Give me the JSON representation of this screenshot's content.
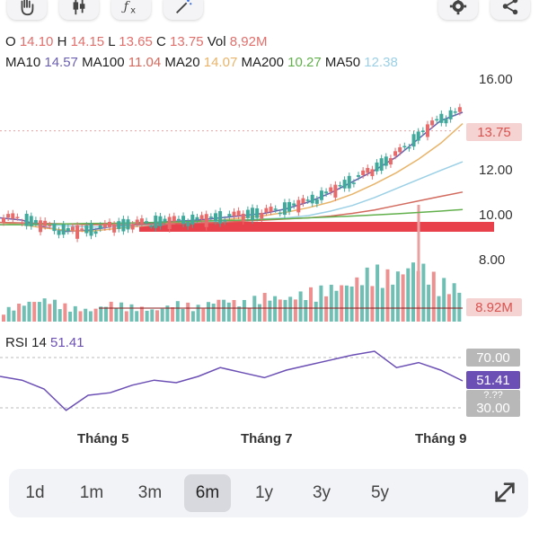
{
  "toolbar": {
    "left_icons": [
      "hand-draw-icon",
      "candle-icon",
      "function-icon",
      "magic-wand-icon"
    ],
    "right_icons": [
      "settings-icon",
      "share-icon"
    ]
  },
  "ohlc": {
    "o_label": "O",
    "o_value": "14.10",
    "h_label": "H",
    "h_value": "14.15",
    "l_label": "L",
    "l_value": "13.65",
    "c_label": "C",
    "c_value": "13.75",
    "vol_label": "Vol",
    "vol_value": "8,92M"
  },
  "ma": {
    "ma10_label": "MA10",
    "ma10_value": "14.57",
    "ma10_color": "#6b5fb0",
    "ma100_label": "MA100",
    "ma100_value": "11.04",
    "ma100_color": "#d36a5e",
    "ma20_label": "MA20",
    "ma20_value": "14.07",
    "ma20_color": "#e8b46a",
    "ma200_label": "MA200",
    "ma200_value": "10.27",
    "ma200_color": "#62b04c",
    "ma50_label": "MA50",
    "ma50_value": "12.38",
    "ma50_color": "#9bd0e6"
  },
  "price_axis": {
    "ticks": [
      "16.00",
      "12.00",
      "10.00",
      "8.00"
    ],
    "last_price_tag": "13.75"
  },
  "volume": {
    "last_volume_tag": "8.92M"
  },
  "rsi": {
    "label": "RSI 14",
    "value": "51.41",
    "levels": [
      "70.00",
      "30.00"
    ],
    "hidden_tick": "?.??",
    "value_color": "#6b4fb5"
  },
  "x_axis": {
    "labels": [
      "Tháng 5",
      "Tháng 7",
      "Tháng 9"
    ]
  },
  "ranges": {
    "items": [
      "1d",
      "1m",
      "3m",
      "6m",
      "1y",
      "3y",
      "5y"
    ],
    "active": "6m"
  },
  "colors": {
    "up": "#3fa99b",
    "down": "#e86b6b",
    "support_band": "#e8414b"
  },
  "chart_data": {
    "type": "line",
    "title": "",
    "xlabel": "",
    "ylabel": "",
    "ylim": [
      7.0,
      16.5
    ],
    "x_tick_labels": [
      "Tháng 5",
      "Tháng 7",
      "Tháng 9"
    ],
    "y_tick_labels": [
      "16.00",
      "12.00",
      "10.00",
      "8.00"
    ],
    "series": [
      {
        "name": "MA10",
        "values": [
          9.9,
          9.8,
          9.5,
          9.3,
          9.35,
          9.5,
          9.6,
          9.7,
          9.75,
          9.8,
          9.9,
          10.0,
          10.1,
          10.3,
          10.6,
          11.0,
          11.5,
          12.0,
          12.6,
          13.4,
          14.2,
          14.57
        ]
      },
      {
        "name": "MA20",
        "values": [
          9.7,
          9.6,
          9.45,
          9.35,
          9.3,
          9.4,
          9.5,
          9.6,
          9.7,
          9.75,
          9.8,
          9.9,
          10.0,
          10.15,
          10.35,
          10.6,
          10.95,
          11.4,
          11.9,
          12.5,
          13.2,
          14.07
        ]
      },
      {
        "name": "MA50",
        "values": [
          9.6,
          9.6,
          9.6,
          9.55,
          9.5,
          9.5,
          9.55,
          9.6,
          9.65,
          9.7,
          9.75,
          9.8,
          9.85,
          9.9,
          10.0,
          10.2,
          10.45,
          10.8,
          11.2,
          11.6,
          12.0,
          12.38
        ]
      },
      {
        "name": "MA100",
        "values": [
          9.7,
          9.68,
          9.65,
          9.63,
          9.6,
          9.6,
          9.6,
          9.62,
          9.65,
          9.68,
          9.7,
          9.75,
          9.8,
          9.85,
          9.9,
          9.98,
          10.1,
          10.25,
          10.45,
          10.65,
          10.85,
          11.04
        ]
      },
      {
        "name": "MA200",
        "values": [
          9.6,
          9.6,
          9.62,
          9.63,
          9.65,
          9.66,
          9.68,
          9.7,
          9.72,
          9.75,
          9.78,
          9.8,
          9.83,
          9.86,
          9.9,
          9.94,
          9.98,
          10.03,
          10.08,
          10.14,
          10.2,
          10.27
        ]
      }
    ],
    "last_close": 13.75,
    "support_level": 9.55,
    "rsi_series": [
      55,
      52,
      45,
      28,
      40,
      42,
      48,
      52,
      50,
      55,
      62,
      58,
      54,
      60,
      64,
      68,
      72,
      75,
      62,
      66,
      60,
      51.41
    ],
    "rsi_levels": [
      70,
      30
    ],
    "volume_series": [
      0.3,
      0.5,
      0.6,
      0.4,
      0.3,
      0.5,
      0.4,
      0.3,
      0.5,
      0.4,
      0.6,
      0.5,
      0.7,
      0.6,
      0.8,
      0.9,
      1.0,
      1.4,
      1.2,
      1.6,
      1.1,
      0.892
    ],
    "legend": "top-left",
    "grid": false
  }
}
